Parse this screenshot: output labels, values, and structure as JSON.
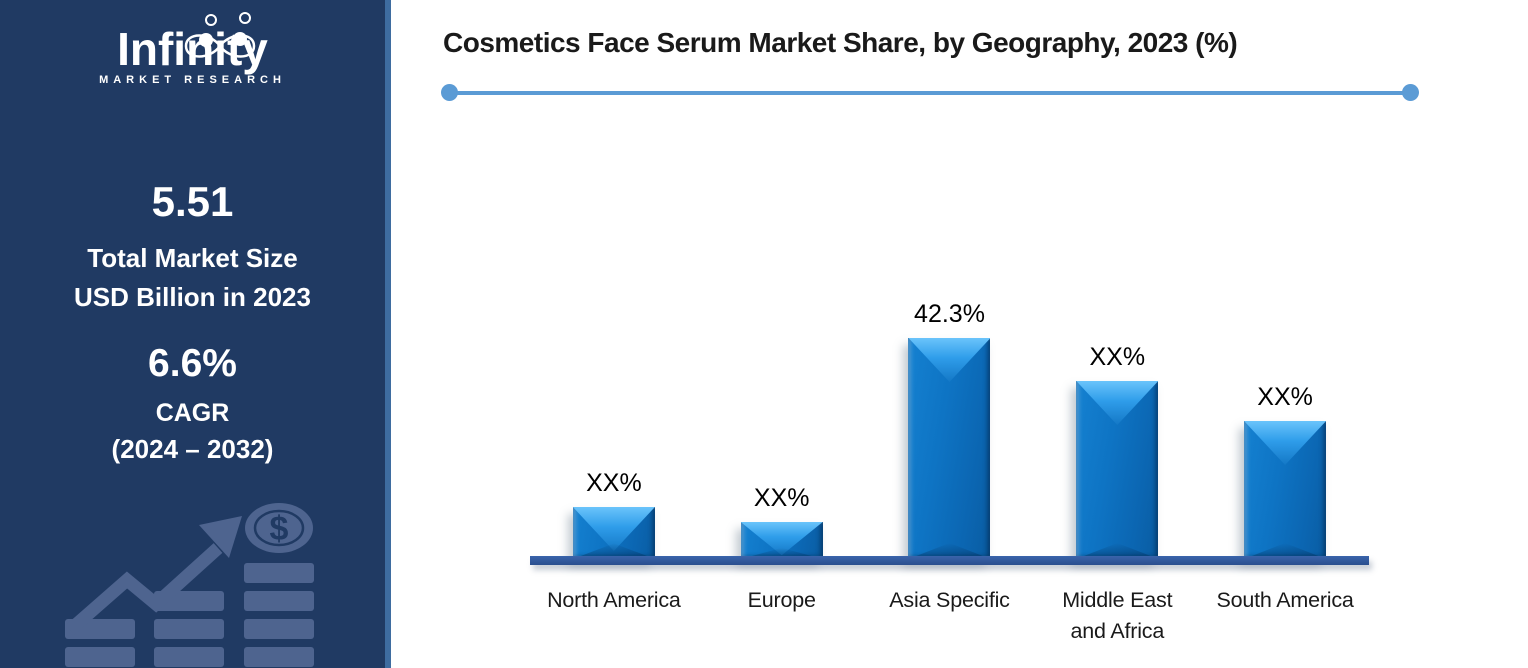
{
  "brand": {
    "name": "Infinity",
    "subtitle": "MARKET RESEARCH"
  },
  "sidebar": {
    "market_size_value": "5.51",
    "market_size_label_line1": "Total Market Size",
    "market_size_label_line2": "USD Billion in 2023",
    "cagr_value": "6.6%",
    "cagr_label_line1": "CAGR",
    "cagr_label_line2": "(2024 – 2032)"
  },
  "chart_data": {
    "type": "bar",
    "title": "Cosmetics Face Serum Market Share, by Geography, 2023 (%)",
    "categories": [
      "North America",
      "Europe",
      "Asia Specific",
      "Middle East and Africa",
      "South America"
    ],
    "value_labels": [
      "XX%",
      "XX%",
      "42.3%",
      "XX%",
      "XX%"
    ],
    "values_pct_estimated_from_bar_heights": [
      10,
      7,
      42.3,
      34,
      26.4
    ],
    "ylim": [
      0,
      45
    ],
    "legend": false,
    "gridlines": false,
    "notes": "Only the Asia Specific share is disclosed (42.3%); remaining bars are masked as XX%",
    "colors": {
      "bar": "#0e74c4",
      "bar_highlight": "#54b5f4",
      "axis_line": "#2f5597",
      "title_underline": "#5b9bd5",
      "sidebar_bg": "#203a63",
      "sidebar_border": "#3e6ca0",
      "sidebar_graphic": "#4e648f"
    }
  }
}
